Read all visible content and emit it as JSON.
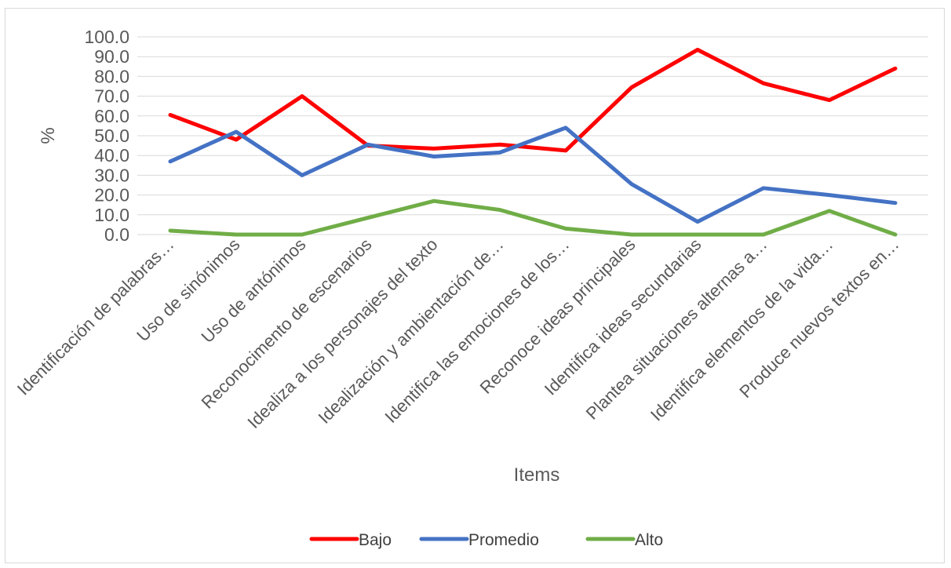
{
  "chart_data": {
    "type": "line",
    "title": "",
    "xlabel": "Items",
    "ylabel": "%",
    "ylim": [
      0,
      100
    ],
    "y_ticks": [
      "0.0",
      "10.0",
      "20.0",
      "30.0",
      "40.0",
      "50.0",
      "60.0",
      "70.0",
      "80.0",
      "90.0",
      "100.0"
    ],
    "grid": true,
    "legend_position": "bottom",
    "categories": [
      "Identificación de palabras…",
      "Uso de sinónimos",
      "Uso de antónimos",
      "Reconocimento de escenarios",
      "Idealiza a los personajes del texto",
      "Idealización y ambientación de…",
      "Identifica las emociones de los…",
      "Reconoce ideas principales",
      "Identifica ideas secundarias",
      "Plantea situaciones alternas a…",
      "Identifica elementos de la vida…",
      "Produce nuevos textos en…"
    ],
    "series": [
      {
        "name": "Bajo",
        "color": "#ff0000",
        "values": [
          60.5,
          48.0,
          70.0,
          45.0,
          43.5,
          45.5,
          42.5,
          74.5,
          93.5,
          76.5,
          68.0,
          84.0
        ]
      },
      {
        "name": "Promedio",
        "color": "#4472c4",
        "values": [
          37.0,
          52.0,
          30.0,
          45.5,
          39.5,
          41.5,
          54.0,
          25.5,
          6.5,
          23.5,
          20.0,
          16.0
        ]
      },
      {
        "name": "Alto",
        "color": "#70ad47",
        "values": [
          2.0,
          0.0,
          0.0,
          8.5,
          17.0,
          12.5,
          3.0,
          0.0,
          0.0,
          0.0,
          12.0,
          0.0
        ]
      }
    ]
  }
}
